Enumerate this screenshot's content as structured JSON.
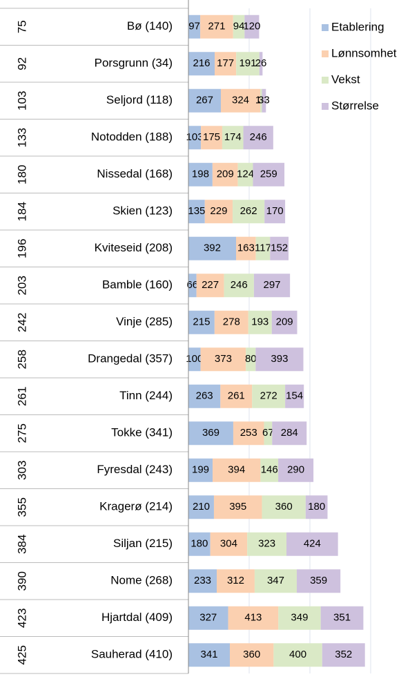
{
  "chart_data": {
    "type": "stacked_bar_horizontal",
    "row_numbers": [
      75,
      92,
      103,
      133,
      180,
      184,
      196,
      203,
      242,
      258,
      261,
      275,
      303,
      355,
      384,
      390,
      423,
      425
    ],
    "categories": [
      "Bø (140)",
      "Porsgrunn (34)",
      "Seljord (118)",
      "Notodden (188)",
      "Nissedal (168)",
      "Skien (123)",
      "Kviteseid (208)",
      "Bamble (160)",
      "Vinje (285)",
      "Drangedal (357)",
      "Tinn (244)",
      "Tokke (341)",
      "Fyresdal (243)",
      "Kragerø (214)",
      "Siljan (215)",
      "Nome (268)",
      "Hjartdal (409)",
      "Sauherad (410)"
    ],
    "series": [
      {
        "name": "Etablering",
        "color": "#a9c1e2",
        "values": [
          97,
          216,
          267,
          103,
          198,
          135,
          392,
          66,
          215,
          100,
          263,
          369,
          199,
          210,
          180,
          233,
          327,
          341
        ]
      },
      {
        "name": "Lønnsomhet",
        "color": "#fbd0b0",
        "values": [
          271,
          177,
          324,
          175,
          209,
          229,
          163,
          227,
          278,
          373,
          261,
          253,
          394,
          395,
          304,
          312,
          413,
          360
        ]
      },
      {
        "name": "Vekst",
        "color": "#dae9c6",
        "values": [
          94,
          191,
          14,
          174,
          124,
          262,
          117,
          246,
          193,
          80,
          272,
          67,
          146,
          360,
          323,
          347,
          349,
          400
        ]
      },
      {
        "name": "Størrelse",
        "color": "#cec1de",
        "values": [
          120,
          26,
          33,
          246,
          259,
          170,
          152,
          297,
          209,
          393,
          154,
          284,
          290,
          180,
          424,
          359,
          351,
          352
        ]
      }
    ],
    "xlim": [
      0,
      1500
    ],
    "xticks": [
      0,
      500,
      1000,
      1500
    ],
    "grid": true,
    "legend": "top-right"
  }
}
